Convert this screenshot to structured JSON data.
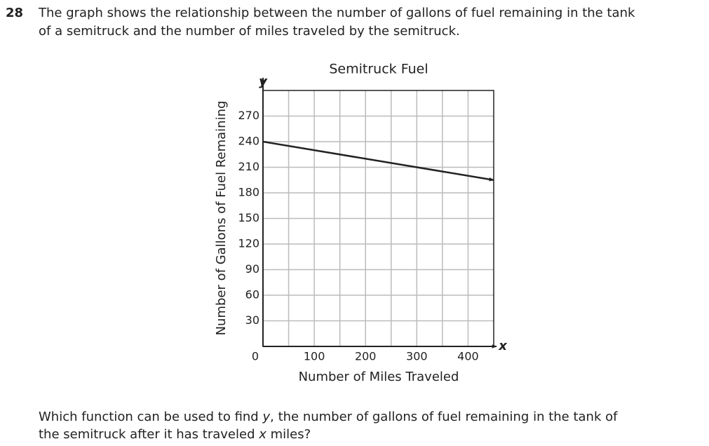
{
  "question": {
    "number": "28",
    "text_lines": [
      "The graph shows the relationship between the number of gallons of fuel remaining in the tank",
      "of a semitruck and the number of miles traveled by the semitruck."
    ],
    "prompt_lines": [
      [
        "Which function can be used to find ",
        "y",
        ", the number of gallons of fuel remaining in the tank of"
      ],
      [
        "the semitruck after it has traveled ",
        "x",
        " miles?"
      ]
    ]
  },
  "chart_data": {
    "type": "line",
    "title": "Semitruck Fuel",
    "x_label": "Number of Miles Traveled",
    "y_label": "Number of Gallons of Fuel Remaining",
    "x_axis_letter": "x",
    "y_axis_letter": "y",
    "x": [
      0,
      450
    ],
    "series": [
      {
        "color": "#222222",
        "values": [
          240,
          195
        ]
      }
    ],
    "xlim": [
      0,
      450
    ],
    "ylim": [
      0,
      300
    ],
    "xticks": [
      0,
      100,
      200,
      300,
      400
    ],
    "yticks": [
      30,
      60,
      90,
      120,
      150,
      180,
      210,
      240,
      270
    ],
    "x_grid": [
      50,
      100,
      150,
      200,
      250,
      300,
      350,
      400
    ],
    "y_grid": [
      30,
      60,
      90,
      120,
      150,
      180,
      210,
      240,
      270
    ],
    "grid": true
  }
}
